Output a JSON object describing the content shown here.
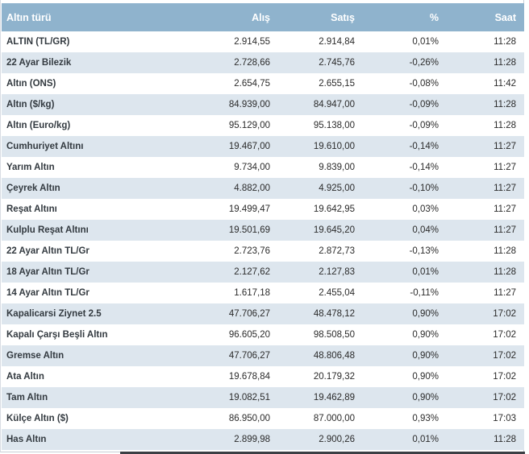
{
  "headers": {
    "name": "Altın türü",
    "buy": "Alış",
    "sell": "Satış",
    "pct": "%",
    "time": "Saat"
  },
  "rows": [
    {
      "name": "ALTIN (TL/GR)",
      "buy": "2.914,55",
      "sell": "2.914,84",
      "pct": "0,01%",
      "time": "11:28"
    },
    {
      "name": "22 Ayar Bilezik",
      "buy": "2.728,66",
      "sell": "2.745,76",
      "pct": "-0,26%",
      "time": "11:28"
    },
    {
      "name": "Altın (ONS)",
      "buy": "2.654,75",
      "sell": "2.655,15",
      "pct": "-0,08%",
      "time": "11:42"
    },
    {
      "name": "Altın ($/kg)",
      "buy": "84.939,00",
      "sell": "84.947,00",
      "pct": "-0,09%",
      "time": "11:28"
    },
    {
      "name": "Altın (Euro/kg)",
      "buy": "95.129,00",
      "sell": "95.138,00",
      "pct": "-0,09%",
      "time": "11:28"
    },
    {
      "name": "Cumhuriyet Altını",
      "buy": "19.467,00",
      "sell": "19.610,00",
      "pct": "-0,14%",
      "time": "11:27"
    },
    {
      "name": "Yarım Altın",
      "buy": "9.734,00",
      "sell": "9.839,00",
      "pct": "-0,14%",
      "time": "11:27"
    },
    {
      "name": "Çeyrek Altın",
      "buy": "4.882,00",
      "sell": "4.925,00",
      "pct": "-0,10%",
      "time": "11:27"
    },
    {
      "name": "Reşat Altını",
      "buy": "19.499,47",
      "sell": "19.642,95",
      "pct": "0,03%",
      "time": "11:27"
    },
    {
      "name": "Kulplu Reşat Altını",
      "buy": "19.501,69",
      "sell": "19.645,20",
      "pct": "0,04%",
      "time": "11:27"
    },
    {
      "name": "22 Ayar Altın TL/Gr",
      "buy": "2.723,76",
      "sell": "2.872,73",
      "pct": "-0,13%",
      "time": "11:28"
    },
    {
      "name": "18 Ayar Altın TL/Gr",
      "buy": "2.127,62",
      "sell": "2.127,83",
      "pct": "0,01%",
      "time": "11:28"
    },
    {
      "name": "14 Ayar Altın TL/Gr",
      "buy": "1.617,18",
      "sell": "2.455,04",
      "pct": "-0,11%",
      "time": "11:27"
    },
    {
      "name": "Kapalicarsi Ziynet 2.5",
      "buy": "47.706,27",
      "sell": "48.478,12",
      "pct": "0,90%",
      "time": "17:02"
    },
    {
      "name": "Kapalı Çarşı Beşli Altın",
      "buy": "96.605,20",
      "sell": "98.508,50",
      "pct": "0,90%",
      "time": "17:02"
    },
    {
      "name": "Gremse Altın",
      "buy": "47.706,27",
      "sell": "48.806,48",
      "pct": "0,90%",
      "time": "17:02"
    },
    {
      "name": "Ata Altın",
      "buy": "19.678,84",
      "sell": "20.179,32",
      "pct": "0,90%",
      "time": "17:02"
    },
    {
      "name": "Tam Altın",
      "buy": "19.082,51",
      "sell": "19.462,89",
      "pct": "0,90%",
      "time": "17:02"
    },
    {
      "name": "Külçe Altın ($)",
      "buy": "86.950,00",
      "sell": "87.000,00",
      "pct": "0,93%",
      "time": "17:03"
    },
    {
      "name": "Has Altın",
      "buy": "2.899,98",
      "sell": "2.900,26",
      "pct": "0,01%",
      "time": "11:28"
    }
  ]
}
